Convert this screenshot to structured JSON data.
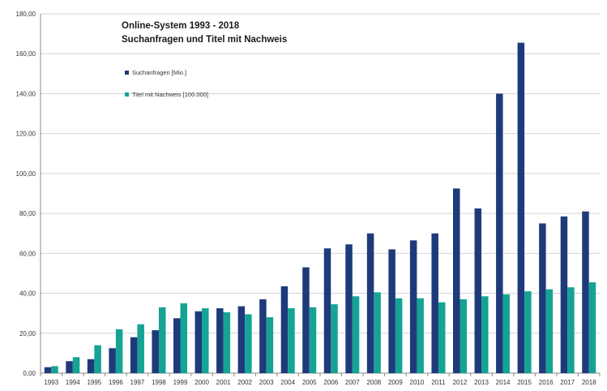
{
  "chart_data": {
    "type": "bar",
    "title": "Online-System 1993 - 2018",
    "subtitle": "Suchanfragen und Titel mit Nachweis",
    "xlabel": "",
    "ylabel": "",
    "ylim": [
      0,
      180
    ],
    "yticks": [
      "0,00",
      "20,00",
      "40,00",
      "60,00",
      "80,00",
      "100,00",
      "120,00",
      "140,00",
      "160,00",
      "180,00"
    ],
    "grid": true,
    "legend_position": "top-left",
    "categories": [
      "1993",
      "1994",
      "1995",
      "1996",
      "1997",
      "1998",
      "1999",
      "2000",
      "2001",
      "2002",
      "2003",
      "2004",
      "2005",
      "2006",
      "2007",
      "2008",
      "2009",
      "2010",
      "2011",
      "2012",
      "2013",
      "2014",
      "2015",
      "2016",
      "2017",
      "2018"
    ],
    "series": [
      {
        "name": "Suchanfragen [Mio.]",
        "color": "#1f3a7a",
        "values": [
          3,
          6,
          7,
          12.5,
          18,
          21.5,
          27.5,
          31,
          32.5,
          33.5,
          37,
          43.5,
          53,
          62.5,
          64.5,
          70,
          62,
          66.5,
          70,
          92.5,
          82.5,
          140,
          165.5,
          75,
          78.5,
          81
        ]
      },
      {
        "name": "Titel mit Nachweis [100.000]",
        "color": "#14a394",
        "values": [
          3.5,
          8,
          14,
          22,
          24.5,
          33,
          35,
          32.5,
          30.5,
          29.5,
          28,
          32.5,
          33,
          34.5,
          38.5,
          40.5,
          37.5,
          37.5,
          35.5,
          37,
          38.5,
          39.5,
          41,
          42,
          43,
          45.5
        ]
      }
    ]
  }
}
